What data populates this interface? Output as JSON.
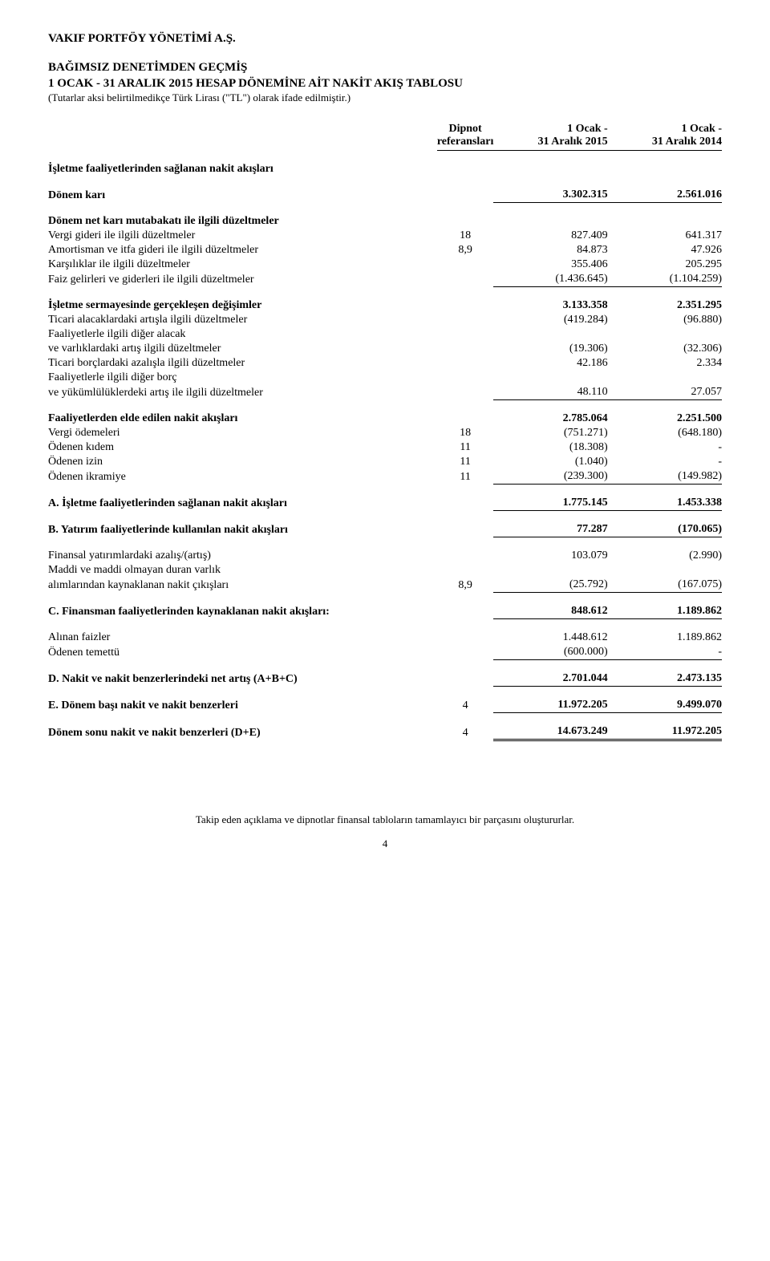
{
  "company": "VAKIF PORTFÖY YÖNETİMİ A.Ş.",
  "title_l1": "BAĞIMSIZ DENETİMDEN GEÇMİŞ",
  "title_l2": "1 OCAK - 31 ARALIK 2015 HESAP DÖNEMİNE AİT NAKİT AKIŞ TABLOSU",
  "subtitle": "(Tutarlar aksi belirtilmedikçe Türk Lirası (\"TL\") olarak ifade edilmiştir.)",
  "hdr": {
    "note_l1": "Dipnot",
    "note_l2": "referansları",
    "c1_l1": "1 Ocak -",
    "c1_l2": "31 Aralık 2015",
    "c2_l1": "1 Ocak -",
    "c2_l2": "31 Aralık 2014"
  },
  "rows": {
    "s1": {
      "label": "İşletme faaliyetlerinden sağlanan nakit akışları"
    },
    "r1": {
      "label": "Dönem karı",
      "note": "",
      "v1": "3.302.315",
      "v2": "2.561.016"
    },
    "s2": {
      "label": "Dönem net karı mutabakatı ile ilgili düzeltmeler"
    },
    "r2": {
      "label": "Vergi gideri ile ilgili düzeltmeler",
      "note": "18",
      "v1": "827.409",
      "v2": "641.317"
    },
    "r3": {
      "label": "Amortisman ve itfa gideri ile ilgili düzeltmeler",
      "note": "8,9",
      "v1": "84.873",
      "v2": "47.926"
    },
    "r4": {
      "label": "Karşılıklar ile ilgili düzeltmeler",
      "note": "",
      "v1": "355.406",
      "v2": "205.295"
    },
    "r5": {
      "label": "Faiz gelirleri ve giderleri ile ilgili düzeltmeler",
      "note": "",
      "v1": "(1.436.645)",
      "v2": "(1.104.259)"
    },
    "s3": {
      "label": "İşletme sermayesinde gerçekleşen değişimler",
      "v1": "3.133.358",
      "v2": "2.351.295"
    },
    "r6": {
      "label": "Ticari alacaklardaki artışla ilgili düzeltmeler",
      "note": "",
      "v1": "(419.284)",
      "v2": "(96.880)"
    },
    "r7a": {
      "label": "Faaliyetlerle ilgili diğer alacak"
    },
    "r7b": {
      "label": "   ve varlıklardaki artış ilgili düzeltmeler",
      "note": "",
      "v1": "(19.306)",
      "v2": "(32.306)"
    },
    "r8": {
      "label": "Ticari borçlardaki azalışla ilgili düzeltmeler",
      "note": "",
      "v1": "42.186",
      "v2": "2.334"
    },
    "r9a": {
      "label": "Faaliyetlerle ilgili diğer borç"
    },
    "r9b": {
      "label": "   ve yükümlülüklerdeki artış ile ilgili düzeltmeler",
      "note": "",
      "v1": "48.110",
      "v2": "27.057"
    },
    "s4": {
      "label": "Faaliyetlerden elde edilen nakit akışları",
      "v1": "2.785.064",
      "v2": "2.251.500"
    },
    "r10": {
      "label": "Vergi ödemeleri",
      "note": "18",
      "v1": "(751.271)",
      "v2": "(648.180)"
    },
    "r11": {
      "label": "Ödenen kıdem",
      "note": "11",
      "v1": "(18.308)",
      "v2": "-"
    },
    "r12": {
      "label": "Ödenen izin",
      "note": "11",
      "v1": "(1.040)",
      "v2": "-"
    },
    "r13": {
      "label": "Ödenen ikramiye",
      "note": "11",
      "v1": "(239.300)",
      "v2": "(149.982)"
    },
    "sA": {
      "label": "A. İşletme faaliyetlerinden sağlanan nakit akışları",
      "v1": "1.775.145",
      "v2": "1.453.338"
    },
    "sB": {
      "label": "B. Yatırım faaliyetlerinde kullanılan nakit akışları",
      "v1": "77.287",
      "v2": "(170.065)"
    },
    "r14": {
      "label": "Finansal yatırımlardaki azalış/(artış)",
      "note": "",
      "v1": "103.079",
      "v2": "(2.990)"
    },
    "r15a": {
      "label": "Maddi ve maddi olmayan duran varlık"
    },
    "r15b": {
      "label": "   alımlarından kaynaklanan nakit çıkışları",
      "note": "8,9",
      "v1": "(25.792)",
      "v2": "(167.075)"
    },
    "sC": {
      "label": "C. Finansman faaliyetlerinden kaynaklanan nakit akışları:",
      "v1": "848.612",
      "v2": "1.189.862"
    },
    "r16": {
      "label": "Alınan faizler",
      "note": "",
      "v1": "1.448.612",
      "v2": "1.189.862"
    },
    "r17": {
      "label": "Ödenen temettü",
      "note": "",
      "v1": "(600.000)",
      "v2": "-"
    },
    "sD": {
      "label": "D. Nakit ve nakit benzerlerindeki net artış (A+B+C)",
      "v1": "2.701.044",
      "v2": "2.473.135"
    },
    "sE": {
      "label": "E. Dönem başı nakit ve nakit benzerleri",
      "note": "4",
      "v1": "11.972.205",
      "v2": "9.499.070"
    },
    "sF": {
      "label": "Dönem sonu nakit ve nakit benzerleri (D+E)",
      "note": "4",
      "v1": "14.673.249",
      "v2": "11.972.205"
    }
  },
  "footer": "Takip eden açıklama ve dipnotlar finansal tabloların tamamlayıcı bir parçasını oluştururlar.",
  "page": "4"
}
